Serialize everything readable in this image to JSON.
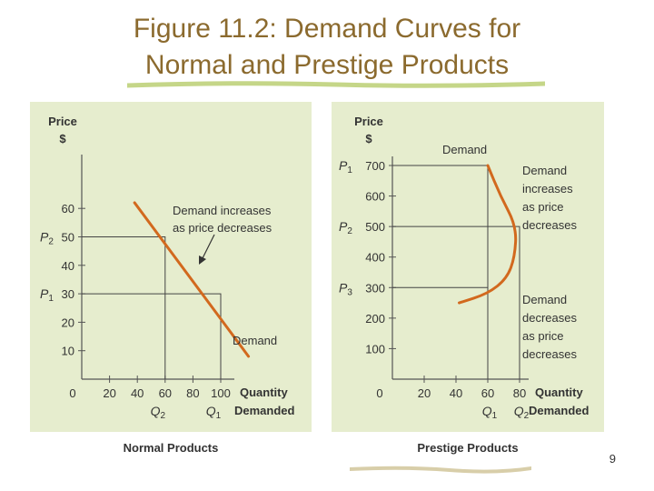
{
  "slide": {
    "title_line1": "Figure 11.2: Demand Curves for",
    "title_line2": "Normal and Prestige Products",
    "page_number": "9"
  },
  "colors": {
    "panel_bg": "#e6edce",
    "curve": "#d2691e",
    "title": "#8b6a2e",
    "accent_stroke": "#b6cc6a"
  },
  "chart_data": [
    {
      "type": "line",
      "caption": "Normal Products",
      "y_label_line1": "Price",
      "y_label_line2": "$",
      "x_label_line1": "Quantity",
      "x_label_line2": "Demanded",
      "xlim": [
        0,
        100
      ],
      "ylim": [
        0,
        60
      ],
      "x_ticks": [
        "0",
        "20",
        "40",
        "60",
        "80",
        "100"
      ],
      "y_ticks": [
        "10",
        "20",
        "30",
        "40",
        "50",
        "60"
      ],
      "series": [
        {
          "name": "Demand",
          "points": [
            [
              38,
              62
            ],
            [
              120,
              8
            ]
          ]
        }
      ],
      "markers": [
        {
          "x_label": "Q1",
          "y_label": "P1",
          "x": 100,
          "y": 30
        },
        {
          "x_label": "Q2",
          "y_label": "P2",
          "x": 60,
          "y": 50
        }
      ],
      "annotations": [
        {
          "text_line1": "Demand increases",
          "text_line2": "as price decreases"
        }
      ]
    },
    {
      "type": "line",
      "caption": "Prestige Products",
      "y_label_line1": "Price",
      "y_label_line2": "$",
      "x_label_line1": "Quantity",
      "x_label_line2": "Demanded",
      "xlim": [
        0,
        80
      ],
      "ylim": [
        0,
        700
      ],
      "x_ticks": [
        "0",
        "20",
        "40",
        "60",
        "80"
      ],
      "y_ticks": [
        "100",
        "200",
        "300",
        "400",
        "500",
        "600",
        "700"
      ],
      "series": [
        {
          "name": "Demand",
          "points": [
            [
              60,
              700
            ],
            [
              68,
              600
            ],
            [
              78,
              500
            ],
            [
              77,
              400
            ],
            [
              72,
              330
            ],
            [
              60,
              280
            ],
            [
              42,
              250
            ]
          ]
        }
      ],
      "markers": [
        {
          "x_label": "Q1",
          "y_label": "P1",
          "x": 60,
          "y": 700
        },
        {
          "x_label": "Q2",
          "y_label": "P2",
          "x": 80,
          "y": 500
        },
        {
          "x_label": "",
          "y_label": "P3",
          "x": 60,
          "y": 300
        }
      ],
      "annotations": [
        {
          "lines": [
            "Demand",
            "increases",
            "as price",
            "decreases"
          ]
        },
        {
          "lines": [
            "Demand",
            "decreases",
            "as price",
            "decreases"
          ]
        }
      ]
    }
  ]
}
